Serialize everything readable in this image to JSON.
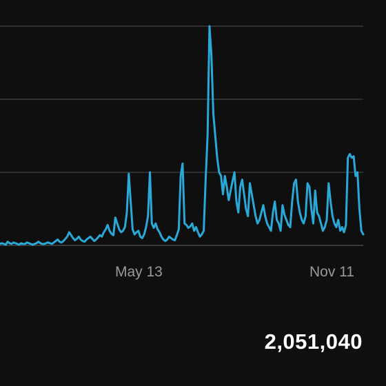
{
  "summary": {
    "total": "2,051,040"
  },
  "colors": {
    "background": "#0f0f0f",
    "line": "#2aa9d8",
    "grid": "#3a3a3a",
    "axis_label": "#9a9a9a",
    "total_text": "#ffffff"
  },
  "chart_data": {
    "type": "line",
    "x_tick_labels": [
      "May 13",
      "Nov 11"
    ],
    "grid": true,
    "gridlines": 4,
    "ylim": [
      0,
      300
    ],
    "series": [
      {
        "values": [
          2,
          3,
          2,
          1,
          5,
          3,
          2,
          4,
          3,
          2,
          1,
          3,
          2,
          2,
          4,
          3,
          2,
          1,
          2,
          3,
          5,
          3,
          2,
          2,
          3,
          4,
          3,
          2,
          4,
          6,
          8,
          5,
          4,
          6,
          9,
          12,
          18,
          14,
          10,
          7,
          9,
          12,
          8,
          6,
          5,
          8,
          10,
          12,
          9,
          6,
          8,
          11,
          14,
          12,
          18,
          22,
          28,
          20,
          16,
          14,
          38,
          30,
          22,
          18,
          20,
          25,
          45,
          98,
          60,
          22,
          15,
          18,
          20,
          12,
          10,
          15,
          25,
          40,
          100,
          30,
          24,
          30,
          22,
          18,
          12,
          8,
          6,
          8,
          12,
          10,
          8,
          7,
          14,
          22,
          95,
          112,
          30,
          28,
          24,
          26,
          30,
          20,
          25,
          18,
          12,
          15,
          20,
          90,
          150,
          300,
          260,
          180,
          150,
          120,
          100,
          95,
          70,
          95,
          80,
          62,
          75,
          88,
          100,
          60,
          45,
          80,
          90,
          70,
          50,
          40,
          85,
          70,
          55,
          40,
          30,
          35,
          45,
          55,
          40,
          30,
          25,
          20,
          45,
          60,
          35,
          30,
          20,
          55,
          42,
          35,
          28,
          25,
          60,
          85,
          90,
          60,
          45,
          35,
          30,
          40,
          85,
          80,
          50,
          30,
          75,
          45,
          40,
          30,
          20,
          25,
          35,
          85,
          60,
          40,
          30,
          25,
          35,
          20,
          25,
          18,
          28,
          120,
          125,
          120,
          122,
          95,
          100,
          50,
          20,
          15
        ]
      }
    ]
  }
}
